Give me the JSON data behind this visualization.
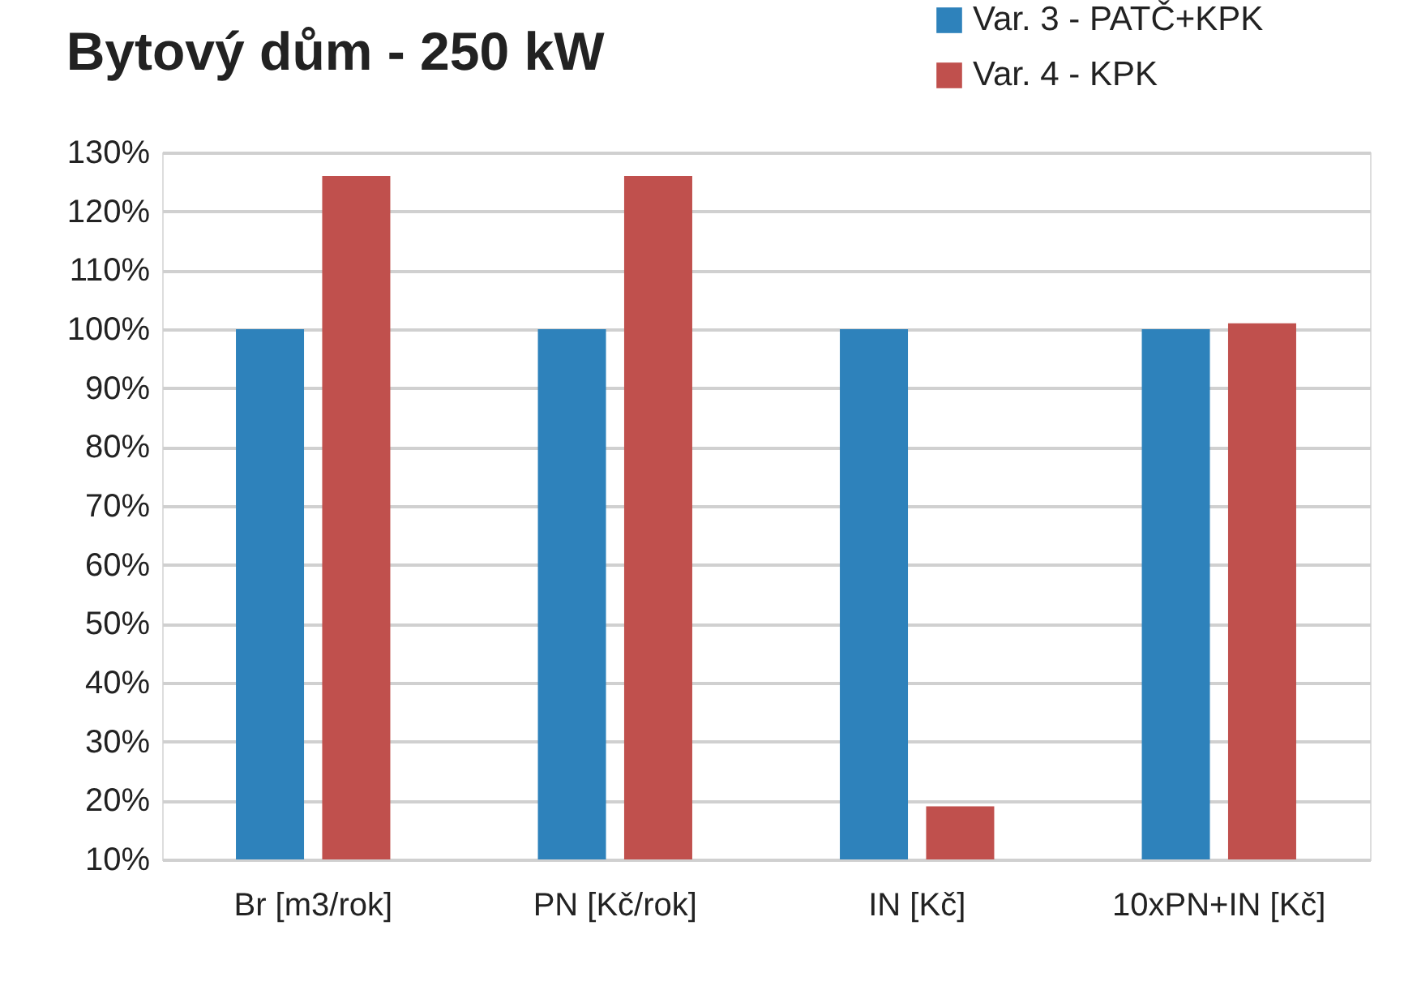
{
  "chart_data": {
    "type": "bar",
    "title": "Bytový dům - 250 kW",
    "categories": [
      "Br  [m3/rok]",
      "PN [Kč/rok]",
      "IN [Kč]",
      "10xPN+IN [Kč]"
    ],
    "series": [
      {
        "name": "Var. 3 - PATČ+KPK",
        "color": "#2e82bb",
        "values": [
          100,
          100,
          100,
          100
        ]
      },
      {
        "name": "Var. 4 - KPK",
        "color": "#c0504d",
        "values": [
          126,
          126,
          19,
          101
        ]
      }
    ],
    "ylim": [
      10,
      130
    ],
    "yticks": [
      {
        "value": 10,
        "label": "10%"
      },
      {
        "value": 20,
        "label": "20%"
      },
      {
        "value": 30,
        "label": "30%"
      },
      {
        "value": 40,
        "label": "40%"
      },
      {
        "value": 50,
        "label": "50%"
      },
      {
        "value": 60,
        "label": "60%"
      },
      {
        "value": 70,
        "label": "70%"
      },
      {
        "value": 80,
        "label": "80%"
      },
      {
        "value": 90,
        "label": "90%"
      },
      {
        "value": 100,
        "label": "100%"
      },
      {
        "value": 110,
        "label": "110%"
      },
      {
        "value": 120,
        "label": "120%"
      },
      {
        "value": 130,
        "label": "130%"
      }
    ],
    "grid": "y",
    "legend": "top right"
  }
}
